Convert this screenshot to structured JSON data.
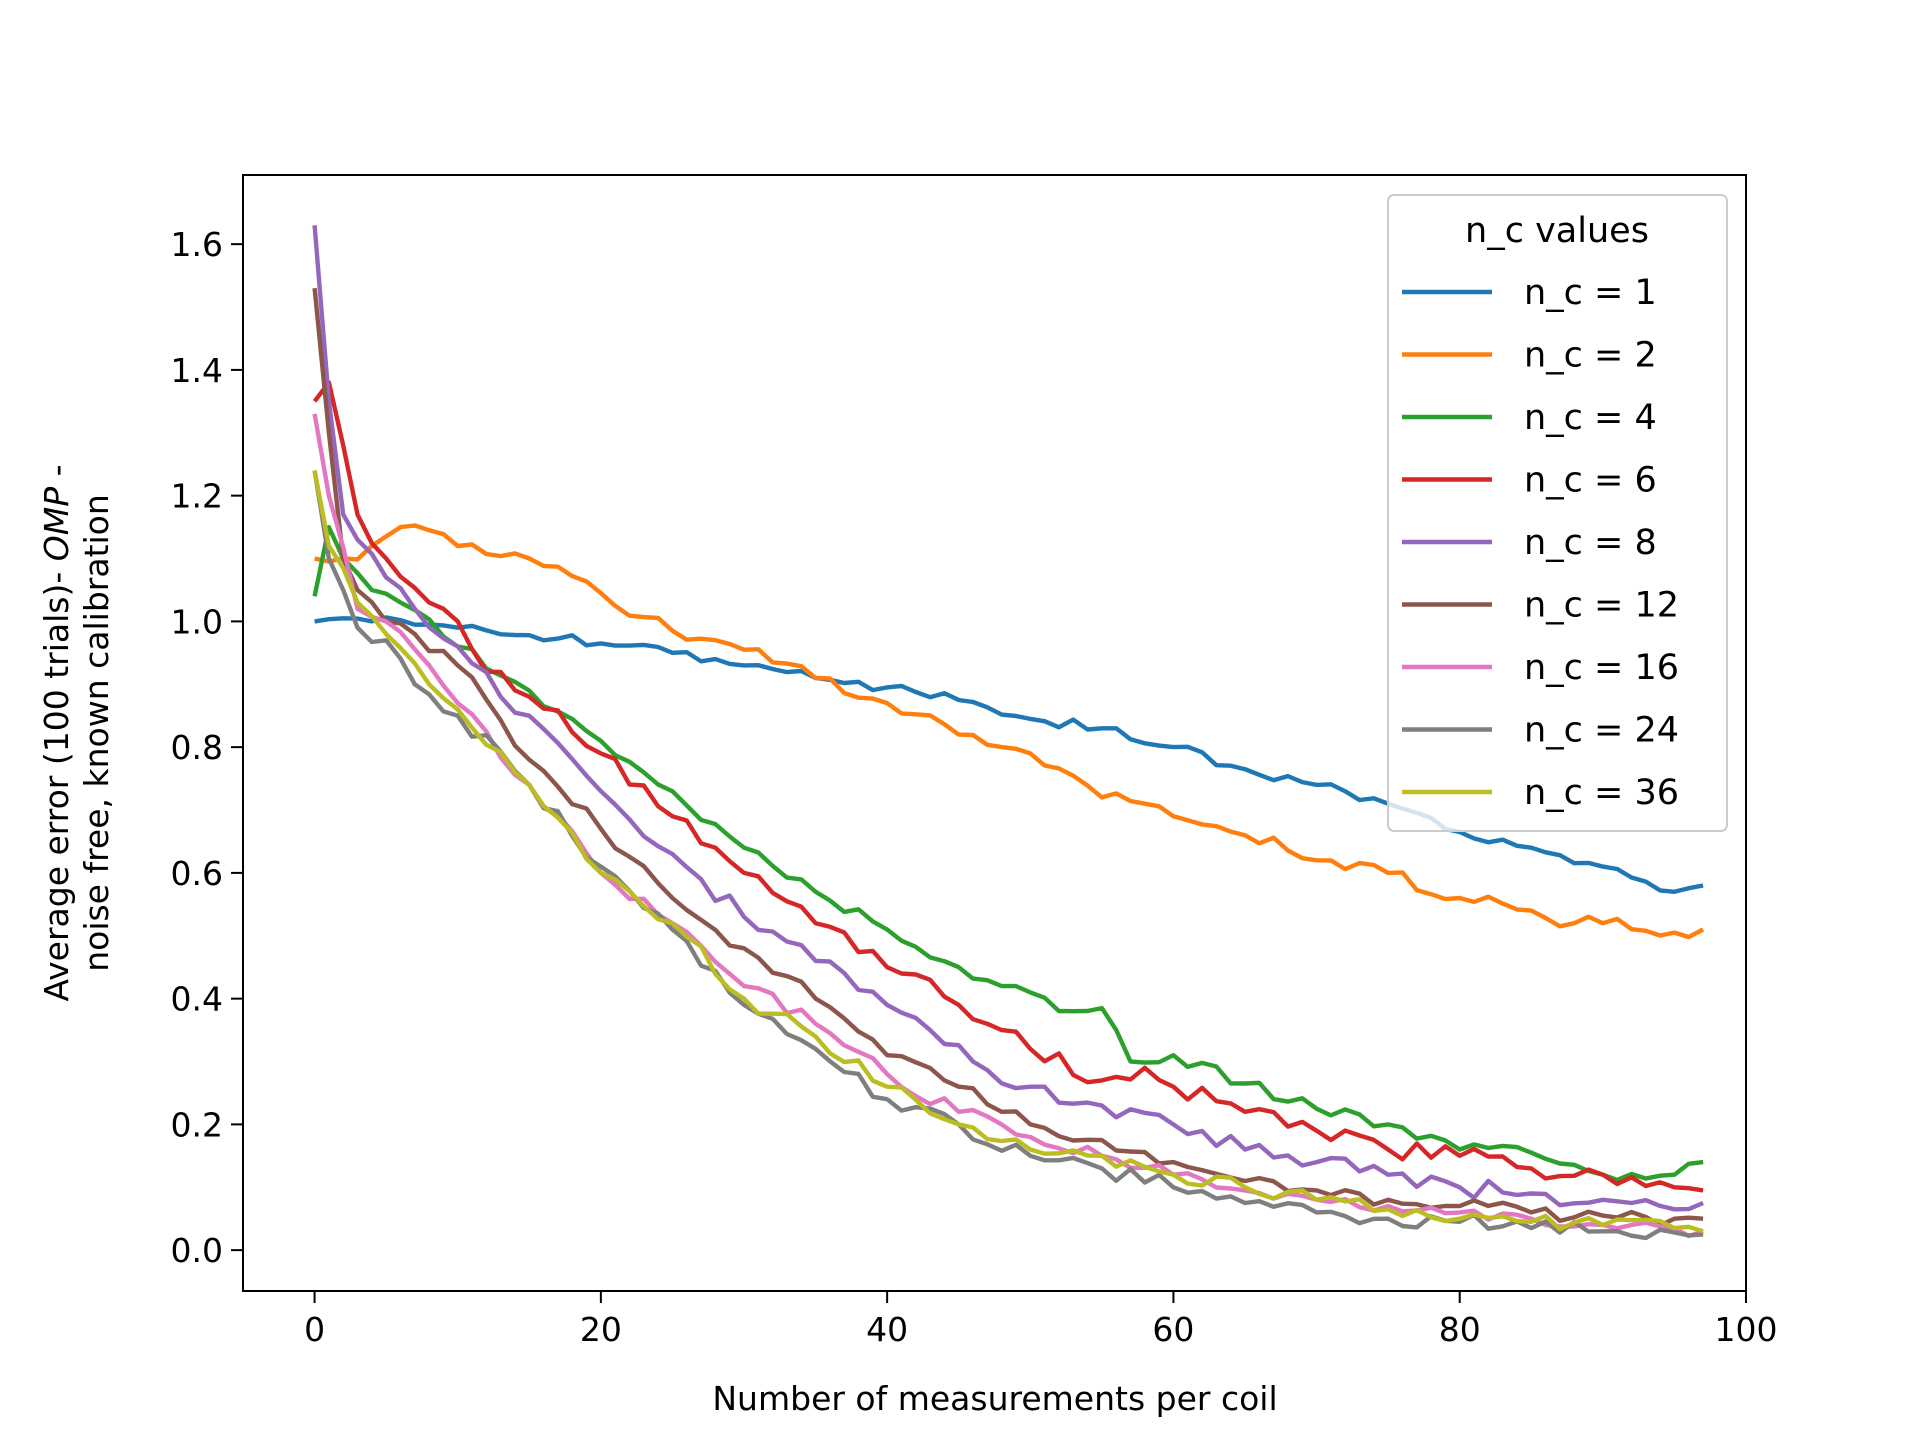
{
  "chart_data": {
    "type": "line",
    "title": "",
    "xlabel": "Number of measurements per coil",
    "ylabel_line1_prefix": "Average error (100 trials)- ",
    "ylabel_line1_italic": "OMP",
    "ylabel_line1_suffix": " -",
    "ylabel_line2": "noise free, known calibration",
    "xlim": [
      -5,
      100
    ],
    "ylim": [
      -0.065,
      1.71
    ],
    "xticks": [
      0,
      20,
      40,
      60,
      80,
      100
    ],
    "yticks": [
      0.0,
      0.2,
      0.4,
      0.6,
      0.8,
      1.0,
      1.2,
      1.4,
      1.6
    ],
    "xtick_labels": [
      "0",
      "20",
      "40",
      "60",
      "80",
      "100"
    ],
    "ytick_labels": [
      "0.0",
      "0.2",
      "0.4",
      "0.6",
      "0.8",
      "1.0",
      "1.2",
      "1.4",
      "1.6"
    ],
    "grid": false,
    "legend": {
      "title": "n_c values",
      "placement": "top-right"
    },
    "x_start": 0,
    "x_step": 1,
    "series": [
      {
        "name": "n_c = 1",
        "color": "#1f77b4",
        "anchors": [
          [
            0,
            1.0
          ],
          [
            2,
            1.005
          ],
          [
            4,
            1.0
          ],
          [
            8,
            0.995
          ],
          [
            10,
            0.99
          ],
          [
            15,
            0.978
          ],
          [
            20,
            0.965
          ],
          [
            25,
            0.95
          ],
          [
            30,
            0.93
          ],
          [
            35,
            0.91
          ],
          [
            40,
            0.895
          ],
          [
            45,
            0.875
          ],
          [
            50,
            0.845
          ],
          [
            55,
            0.83
          ],
          [
            60,
            0.8
          ],
          [
            65,
            0.765
          ],
          [
            70,
            0.74
          ],
          [
            75,
            0.71
          ],
          [
            80,
            0.665
          ],
          [
            85,
            0.64
          ],
          [
            90,
            0.61
          ],
          [
            95,
            0.57
          ],
          [
            97,
            0.58
          ]
        ],
        "jitter": 0.008
      },
      {
        "name": "n_c = 2",
        "color": "#ff7f0e",
        "anchors": [
          [
            0,
            1.1
          ],
          [
            2,
            1.1
          ],
          [
            4,
            1.12
          ],
          [
            6,
            1.15
          ],
          [
            8,
            1.145
          ],
          [
            10,
            1.12
          ],
          [
            15,
            1.1
          ],
          [
            20,
            1.045
          ],
          [
            25,
            0.985
          ],
          [
            30,
            0.955
          ],
          [
            35,
            0.91
          ],
          [
            40,
            0.87
          ],
          [
            45,
            0.82
          ],
          [
            48,
            0.8
          ],
          [
            50,
            0.79
          ],
          [
            55,
            0.72
          ],
          [
            58,
            0.71
          ],
          [
            60,
            0.69
          ],
          [
            65,
            0.66
          ],
          [
            70,
            0.62
          ],
          [
            75,
            0.6
          ],
          [
            80,
            0.56
          ],
          [
            85,
            0.54
          ],
          [
            88,
            0.52
          ],
          [
            90,
            0.52
          ],
          [
            95,
            0.505
          ],
          [
            97,
            0.51
          ]
        ],
        "jitter": 0.012
      },
      {
        "name": "n_c = 4",
        "color": "#2ca02c",
        "anchors": [
          [
            0,
            1.04
          ],
          [
            1,
            1.15
          ],
          [
            2,
            1.1
          ],
          [
            4,
            1.05
          ],
          [
            6,
            1.03
          ],
          [
            10,
            0.96
          ],
          [
            15,
            0.89
          ],
          [
            20,
            0.81
          ],
          [
            25,
            0.73
          ],
          [
            30,
            0.64
          ],
          [
            35,
            0.57
          ],
          [
            40,
            0.51
          ],
          [
            45,
            0.45
          ],
          [
            48,
            0.42
          ],
          [
            50,
            0.41
          ],
          [
            53,
            0.38
          ],
          [
            55,
            0.385
          ],
          [
            57,
            0.3
          ],
          [
            60,
            0.31
          ],
          [
            65,
            0.265
          ],
          [
            70,
            0.225
          ],
          [
            75,
            0.2
          ],
          [
            80,
            0.16
          ],
          [
            85,
            0.155
          ],
          [
            90,
            0.12
          ],
          [
            95,
            0.12
          ],
          [
            97,
            0.14
          ]
        ],
        "jitter": 0.01
      },
      {
        "name": "n_c = 6",
        "color": "#d62728",
        "anchors": [
          [
            0,
            1.35
          ],
          [
            1,
            1.38
          ],
          [
            2,
            1.28
          ],
          [
            3,
            1.17
          ],
          [
            5,
            1.1
          ],
          [
            8,
            1.03
          ],
          [
            10,
            1.0
          ],
          [
            12,
            0.92
          ],
          [
            15,
            0.88
          ],
          [
            20,
            0.79
          ],
          [
            25,
            0.69
          ],
          [
            28,
            0.64
          ],
          [
            30,
            0.6
          ],
          [
            35,
            0.52
          ],
          [
            40,
            0.45
          ],
          [
            43,
            0.43
          ],
          [
            45,
            0.39
          ],
          [
            48,
            0.35
          ],
          [
            50,
            0.32
          ],
          [
            55,
            0.27
          ],
          [
            58,
            0.29
          ],
          [
            60,
            0.26
          ],
          [
            65,
            0.22
          ],
          [
            70,
            0.19
          ],
          [
            75,
            0.16
          ],
          [
            80,
            0.15
          ],
          [
            85,
            0.13
          ],
          [
            90,
            0.12
          ],
          [
            95,
            0.1
          ],
          [
            97,
            0.095
          ]
        ],
        "jitter": 0.015
      },
      {
        "name": "n_c = 8",
        "color": "#9467bd",
        "anchors": [
          [
            0,
            1.63
          ],
          [
            1,
            1.35
          ],
          [
            2,
            1.17
          ],
          [
            3,
            1.13
          ],
          [
            5,
            1.07
          ],
          [
            7,
            1.02
          ],
          [
            10,
            0.96
          ],
          [
            13,
            0.88
          ],
          [
            15,
            0.85
          ],
          [
            20,
            0.73
          ],
          [
            25,
            0.63
          ],
          [
            30,
            0.53
          ],
          [
            35,
            0.46
          ],
          [
            40,
            0.39
          ],
          [
            43,
            0.35
          ],
          [
            46,
            0.3
          ],
          [
            50,
            0.26
          ],
          [
            55,
            0.23
          ],
          [
            60,
            0.2
          ],
          [
            65,
            0.16
          ],
          [
            70,
            0.14
          ],
          [
            75,
            0.12
          ],
          [
            80,
            0.1
          ],
          [
            85,
            0.09
          ],
          [
            90,
            0.08
          ],
          [
            95,
            0.065
          ],
          [
            97,
            0.075
          ]
        ],
        "jitter": 0.015
      },
      {
        "name": "n_c = 12",
        "color": "#8c564b",
        "anchors": [
          [
            0,
            1.53
          ],
          [
            1,
            1.3
          ],
          [
            2,
            1.1
          ],
          [
            3,
            1.05
          ],
          [
            5,
            1.0
          ],
          [
            7,
            0.98
          ],
          [
            10,
            0.93
          ],
          [
            15,
            0.78
          ],
          [
            20,
            0.67
          ],
          [
            25,
            0.56
          ],
          [
            30,
            0.48
          ],
          [
            35,
            0.4
          ],
          [
            40,
            0.31
          ],
          [
            45,
            0.26
          ],
          [
            48,
            0.22
          ],
          [
            50,
            0.2
          ],
          [
            55,
            0.175
          ],
          [
            60,
            0.14
          ],
          [
            65,
            0.11
          ],
          [
            70,
            0.095
          ],
          [
            75,
            0.08
          ],
          [
            80,
            0.07
          ],
          [
            85,
            0.06
          ],
          [
            90,
            0.055
          ],
          [
            95,
            0.05
          ],
          [
            97,
            0.05
          ]
        ],
        "jitter": 0.012
      },
      {
        "name": "n_c = 16",
        "color": "#e377c2",
        "anchors": [
          [
            0,
            1.33
          ],
          [
            1,
            1.2
          ],
          [
            3,
            1.02
          ],
          [
            5,
            1.0
          ],
          [
            8,
            0.93
          ],
          [
            10,
            0.87
          ],
          [
            15,
            0.74
          ],
          [
            20,
            0.6
          ],
          [
            25,
            0.52
          ],
          [
            30,
            0.42
          ],
          [
            35,
            0.36
          ],
          [
            40,
            0.28
          ],
          [
            45,
            0.22
          ],
          [
            50,
            0.18
          ],
          [
            55,
            0.15
          ],
          [
            60,
            0.12
          ],
          [
            65,
            0.095
          ],
          [
            70,
            0.08
          ],
          [
            75,
            0.07
          ],
          [
            80,
            0.06
          ],
          [
            85,
            0.05
          ],
          [
            90,
            0.04
          ],
          [
            95,
            0.035
          ],
          [
            97,
            0.03
          ]
        ],
        "jitter": 0.012
      },
      {
        "name": "n_c = 24",
        "color": "#7f7f7f",
        "anchors": [
          [
            0,
            1.24
          ],
          [
            1,
            1.1
          ],
          [
            2,
            1.05
          ],
          [
            3,
            0.99
          ],
          [
            5,
            0.97
          ],
          [
            7,
            0.9
          ],
          [
            10,
            0.85
          ],
          [
            15,
            0.74
          ],
          [
            20,
            0.61
          ],
          [
            25,
            0.51
          ],
          [
            30,
            0.39
          ],
          [
            35,
            0.32
          ],
          [
            40,
            0.24
          ],
          [
            45,
            0.2
          ],
          [
            50,
            0.15
          ],
          [
            55,
            0.13
          ],
          [
            60,
            0.1
          ],
          [
            65,
            0.075
          ],
          [
            70,
            0.06
          ],
          [
            75,
            0.05
          ],
          [
            80,
            0.045
          ],
          [
            85,
            0.035
          ],
          [
            90,
            0.03
          ],
          [
            95,
            0.028
          ],
          [
            97,
            0.025
          ]
        ],
        "jitter": 0.014
      },
      {
        "name": "n_c = 36",
        "color": "#bcbd22",
        "anchors": [
          [
            0,
            1.24
          ],
          [
            1,
            1.12
          ],
          [
            3,
            1.03
          ],
          [
            5,
            0.98
          ],
          [
            8,
            0.9
          ],
          [
            10,
            0.86
          ],
          [
            15,
            0.74
          ],
          [
            20,
            0.6
          ],
          [
            25,
            0.52
          ],
          [
            30,
            0.4
          ],
          [
            35,
            0.34
          ],
          [
            40,
            0.26
          ],
          [
            45,
            0.2
          ],
          [
            50,
            0.16
          ],
          [
            55,
            0.15
          ],
          [
            60,
            0.12
          ],
          [
            65,
            0.1
          ],
          [
            70,
            0.08
          ],
          [
            75,
            0.065
          ],
          [
            80,
            0.05
          ],
          [
            85,
            0.045
          ],
          [
            90,
            0.04
          ],
          [
            95,
            0.035
          ],
          [
            97,
            0.03
          ]
        ],
        "jitter": 0.012
      }
    ]
  }
}
